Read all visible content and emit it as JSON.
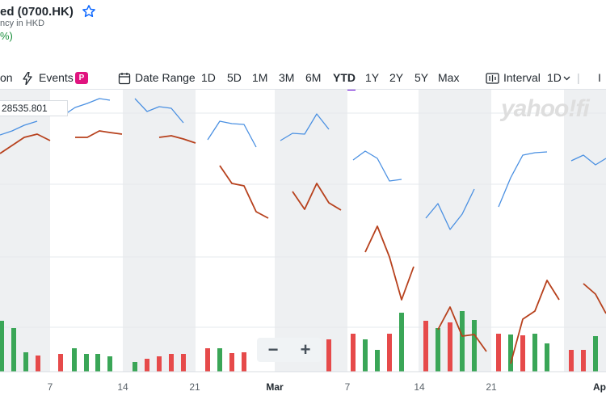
{
  "header": {
    "title": "ed (0700.HK)",
    "currency_note": "ncy in HKD",
    "change_pct": "%)"
  },
  "toolbar": {
    "comparison_label": "on",
    "events_label": "Events",
    "events_badge": "P",
    "date_range_label": "Date Range",
    "ranges": [
      "1D",
      "5D",
      "1M",
      "3M",
      "6M",
      "YTD",
      "1Y",
      "2Y",
      "5Y",
      "Max"
    ],
    "active_range": "YTD",
    "interval_label": "Interval",
    "interval_value": "1D",
    "indicator_partial": "I"
  },
  "chart": {
    "watermark": "yahoo!fi",
    "crosshair_value": "28535.801",
    "zoom_out": "−",
    "zoom_in": "+"
  },
  "colors": {
    "price_line": "#4a90e2",
    "index_line": "#b7411d",
    "volume_up": "#3aa657",
    "volume_down": "#e64a4a",
    "weekend_band": "#eef0f2",
    "accent": "#6001d2",
    "badge": "#e0147f"
  },
  "chart_data": {
    "type": "line",
    "x_labels": [
      "7",
      "14",
      "21",
      "Mar",
      "7",
      "14",
      "21",
      "Ap"
    ],
    "series": [
      {
        "style": "line",
        "color": "#4a90e2",
        "segments": [
          [
            [
              0,
              167
            ],
            [
              15,
              162
            ],
            [
              30,
              155
            ],
            [
              46,
              150
            ]
          ],
          [
            [
              78,
              143
            ],
            [
              93,
              133
            ],
            [
              108,
              128
            ],
            [
              123,
              122
            ],
            [
              136,
              124
            ]
          ],
          [
            [
              167,
              122
            ],
            [
              182,
              138
            ],
            [
              197,
              132
            ],
            [
              212,
              134
            ],
            [
              227,
              152
            ]
          ],
          [
            [
              257,
              173
            ],
            [
              272,
              150
            ],
            [
              287,
              153
            ],
            [
              302,
              154
            ],
            [
              317,
              182
            ]
          ],
          [
            [
              347,
              174
            ],
            [
              362,
              165
            ],
            [
              377,
              166
            ],
            [
              392,
              141
            ],
            [
              407,
              160
            ]
          ],
          [
            [
              437,
              198
            ],
            [
              452,
              187
            ],
            [
              467,
              196
            ],
            [
              482,
              224
            ],
            [
              497,
              222
            ]
          ],
          [
            [
              527,
              270
            ],
            [
              542,
              252
            ],
            [
              557,
              284
            ],
            [
              572,
              265
            ],
            [
              587,
              234
            ]
          ],
          [
            [
              617,
              256
            ],
            [
              632,
              220
            ],
            [
              647,
              192
            ],
            [
              662,
              189
            ],
            [
              677,
              188
            ]
          ],
          [
            [
              707,
              199
            ],
            [
              722,
              192
            ],
            [
              737,
              204
            ],
            [
              750,
              196
            ]
          ]
        ]
      },
      {
        "style": "line",
        "color": "#b7411d",
        "segments": [
          [
            [
              0,
              190
            ],
            [
              15,
              180
            ],
            [
              30,
              170
            ],
            [
              46,
              166
            ],
            [
              62,
              174
            ]
          ],
          [
            [
              93,
              170
            ],
            [
              108,
              170
            ],
            [
              123,
              162
            ],
            [
              136,
              164
            ],
            [
              151,
              166
            ]
          ],
          [
            [
              197,
              170
            ],
            [
              212,
              168
            ],
            [
              227,
              172
            ],
            [
              242,
              177
            ]
          ],
          [
            [
              272,
              205
            ],
            [
              287,
              227
            ],
            [
              302,
              230
            ],
            [
              317,
              262
            ],
            [
              332,
              270
            ]
          ],
          [
            [
              362,
              237
            ],
            [
              377,
              259
            ],
            [
              392,
              227
            ],
            [
              407,
              251
            ],
            [
              422,
              260
            ]
          ],
          [
            [
              452,
              312
            ],
            [
              467,
              280
            ],
            [
              482,
              318
            ],
            [
              497,
              371
            ],
            [
              512,
              330
            ]
          ],
          [
            [
              542,
              408
            ],
            [
              557,
              380
            ],
            [
              572,
              416
            ],
            [
              587,
              414
            ],
            [
              602,
              435
            ]
          ],
          [
            [
              632,
              450
            ],
            [
              647,
              395
            ],
            [
              662,
              385
            ],
            [
              677,
              347
            ],
            [
              692,
              371
            ]
          ],
          [
            [
              722,
              351
            ],
            [
              737,
              364
            ],
            [
              750,
              388
            ]
          ]
        ]
      }
    ],
    "volume": {
      "base_y": 460,
      "bars": [
        {
          "x": 2,
          "top": 397,
          "up": true
        },
        {
          "x": 17,
          "top": 406,
          "up": true
        },
        {
          "x": 32,
          "top": 436,
          "up": true
        },
        {
          "x": 47,
          "top": 440,
          "up": false
        },
        {
          "x": 75,
          "top": 438,
          "up": false
        },
        {
          "x": 92,
          "top": 431,
          "up": true
        },
        {
          "x": 107,
          "top": 438,
          "up": true
        },
        {
          "x": 121,
          "top": 438,
          "up": true
        },
        {
          "x": 136,
          "top": 441,
          "up": true
        },
        {
          "x": 167,
          "top": 448,
          "up": true
        },
        {
          "x": 182,
          "top": 444,
          "up": false
        },
        {
          "x": 197,
          "top": 441,
          "up": false
        },
        {
          "x": 212,
          "top": 438,
          "up": false
        },
        {
          "x": 227,
          "top": 438,
          "up": false
        },
        {
          "x": 257,
          "top": 431,
          "up": false
        },
        {
          "x": 272,
          "top": 431,
          "up": true
        },
        {
          "x": 287,
          "top": 437,
          "up": false
        },
        {
          "x": 302,
          "top": 436,
          "up": false
        },
        {
          "x": 407,
          "top": 420,
          "up": false
        },
        {
          "x": 437,
          "top": 413,
          "up": false
        },
        {
          "x": 452,
          "top": 420,
          "up": true
        },
        {
          "x": 467,
          "top": 433,
          "up": true
        },
        {
          "x": 482,
          "top": 413,
          "up": false
        },
        {
          "x": 497,
          "top": 387,
          "up": true
        },
        {
          "x": 527,
          "top": 397,
          "up": false
        },
        {
          "x": 542,
          "top": 406,
          "up": true
        },
        {
          "x": 557,
          "top": 399,
          "up": false
        },
        {
          "x": 572,
          "top": 385,
          "up": true
        },
        {
          "x": 587,
          "top": 396,
          "up": true
        },
        {
          "x": 617,
          "top": 413,
          "up": false
        },
        {
          "x": 632,
          "top": 414,
          "up": true
        },
        {
          "x": 647,
          "top": 415,
          "up": false
        },
        {
          "x": 662,
          "top": 413,
          "up": true
        },
        {
          "x": 677,
          "top": 425,
          "up": true
        },
        {
          "x": 707,
          "top": 433,
          "up": false
        },
        {
          "x": 722,
          "top": 433,
          "up": false
        },
        {
          "x": 737,
          "top": 416,
          "up": true
        }
      ]
    },
    "weekend_bands": [
      [
        0,
        62
      ],
      [
        152,
        242
      ],
      [
        340,
        430
      ],
      [
        518,
        608
      ],
      [
        698,
        750
      ]
    ],
    "grid_y": [
      140,
      228,
      318,
      405
    ],
    "xlabel": "",
    "ylabel": ""
  }
}
